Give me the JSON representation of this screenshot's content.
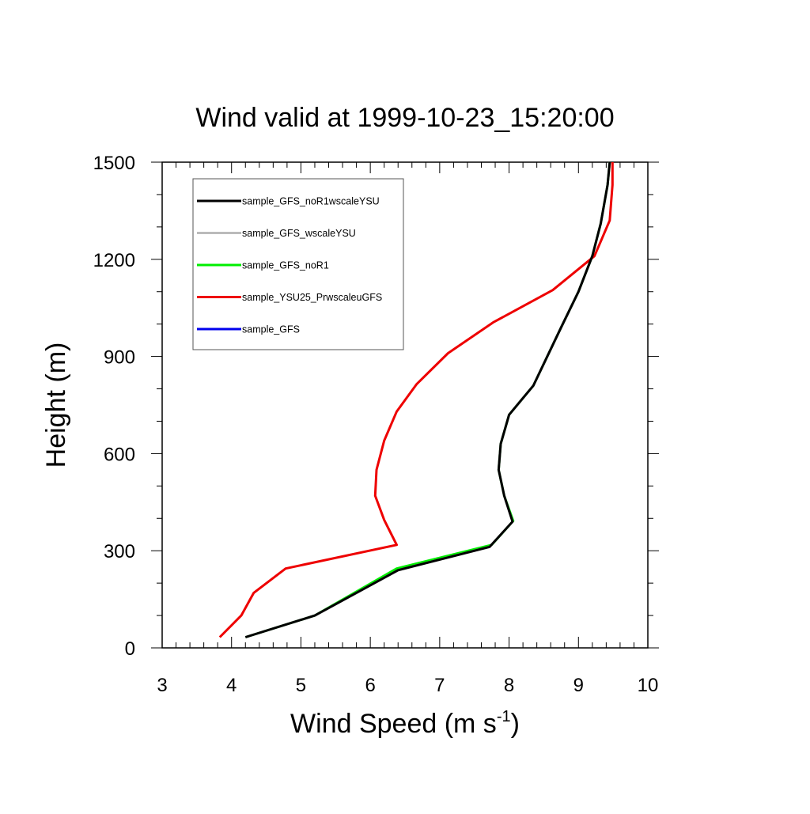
{
  "chart_data": {
    "type": "line",
    "title": "Wind valid at 1999-10-23_15:20:00",
    "xlabel": "Wind Speed (m s",
    "xlabel_sup": "-1",
    "xlabel_end": ")",
    "ylabel": "Height (m)",
    "xlim": [
      3,
      10
    ],
    "ylim": [
      0,
      1500
    ],
    "xticks": [
      3,
      4,
      5,
      6,
      7,
      8,
      9,
      10
    ],
    "yticks": [
      0,
      300,
      600,
      900,
      1200,
      1500
    ],
    "legend_position": "top-left",
    "grid": false,
    "series": [
      {
        "name": "sample_GFS_noR1wscaleYSU",
        "color": "#000000",
        "points": [
          [
            4.2,
            33
          ],
          [
            5.2,
            100
          ],
          [
            6.4,
            240
          ],
          [
            7.72,
            312
          ],
          [
            8.05,
            390
          ],
          [
            7.93,
            470
          ],
          [
            7.85,
            550
          ],
          [
            7.88,
            630
          ],
          [
            8.0,
            720
          ],
          [
            8.35,
            810
          ],
          [
            8.75,
            990
          ],
          [
            9.0,
            1100
          ],
          [
            9.2,
            1210
          ],
          [
            9.32,
            1310
          ],
          [
            9.42,
            1430
          ],
          [
            9.45,
            1500
          ]
        ]
      },
      {
        "name": "sample_GFS_wscaleYSU",
        "color": "#bbbbbb",
        "points": [
          [
            4.2,
            33
          ],
          [
            5.2,
            100
          ],
          [
            6.4,
            240
          ],
          [
            7.72,
            312
          ],
          [
            8.05,
            390
          ],
          [
            7.93,
            470
          ],
          [
            7.85,
            550
          ],
          [
            7.88,
            630
          ],
          [
            8.0,
            720
          ],
          [
            8.35,
            810
          ],
          [
            8.75,
            990
          ],
          [
            9.0,
            1100
          ],
          [
            9.2,
            1210
          ],
          [
            9.32,
            1310
          ],
          [
            9.42,
            1430
          ],
          [
            9.45,
            1500
          ]
        ]
      },
      {
        "name": "sample_GFS_noR1",
        "color": "#00ee00",
        "points": [
          [
            4.2,
            33
          ],
          [
            5.2,
            100
          ],
          [
            6.38,
            245
          ],
          [
            7.75,
            318
          ],
          [
            8.06,
            392
          ],
          [
            7.93,
            470
          ],
          [
            7.85,
            550
          ],
          [
            7.88,
            630
          ],
          [
            8.0,
            720
          ],
          [
            8.35,
            810
          ],
          [
            8.75,
            990
          ],
          [
            9.0,
            1100
          ],
          [
            9.2,
            1210
          ],
          [
            9.32,
            1310
          ],
          [
            9.42,
            1430
          ],
          [
            9.45,
            1500
          ]
        ]
      },
      {
        "name": "sample_YSU25_PrwscaleuGFS",
        "color": "#ee0000",
        "points": [
          [
            3.83,
            33
          ],
          [
            4.14,
            100
          ],
          [
            4.32,
            170
          ],
          [
            4.78,
            245
          ],
          [
            6.38,
            318
          ],
          [
            6.2,
            395
          ],
          [
            6.07,
            470
          ],
          [
            6.09,
            550
          ],
          [
            6.2,
            640
          ],
          [
            6.38,
            730
          ],
          [
            6.67,
            815
          ],
          [
            7.12,
            910
          ],
          [
            7.77,
            1005
          ],
          [
            8.63,
            1105
          ],
          [
            9.23,
            1210
          ],
          [
            9.45,
            1320
          ],
          [
            9.49,
            1430
          ],
          [
            9.49,
            1500
          ]
        ]
      },
      {
        "name": "sample_GFS",
        "color": "#0000ee",
        "points": []
      }
    ]
  }
}
